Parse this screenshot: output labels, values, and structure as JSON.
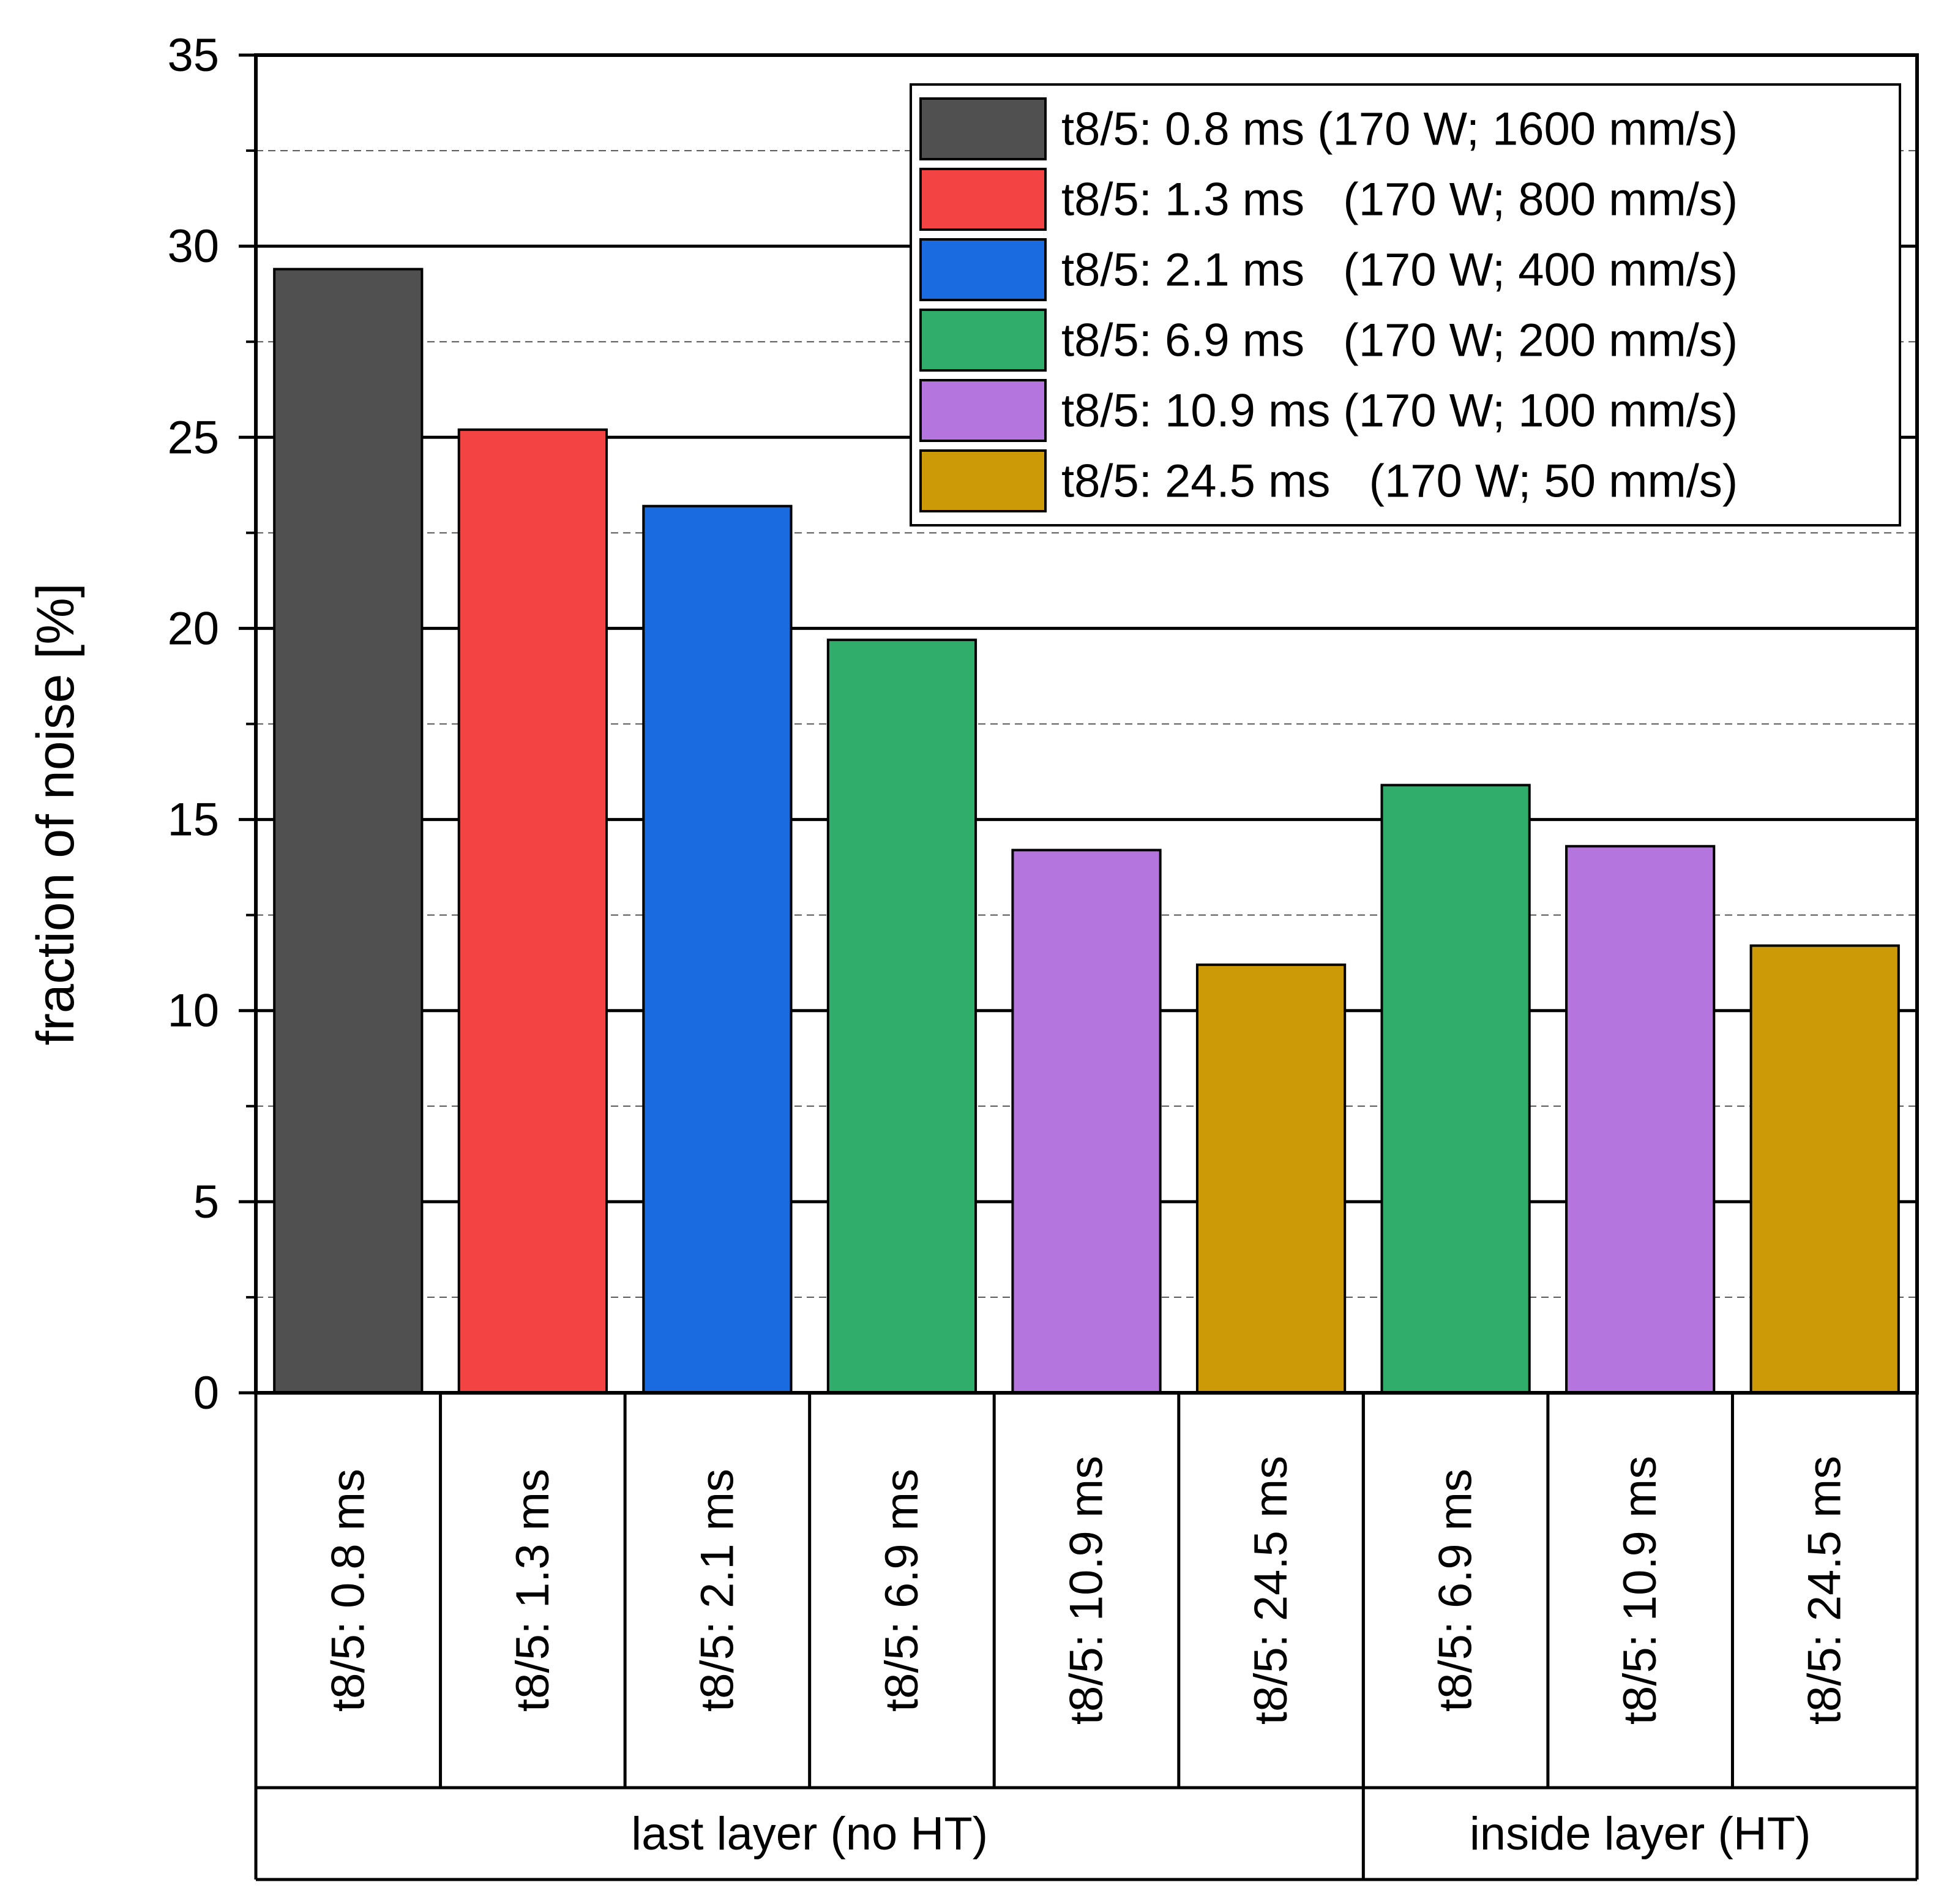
{
  "chart_data": {
    "type": "bar",
    "ylabel": "fraction of noise [%]",
    "ylim": [
      0,
      35
    ],
    "y_ticks": [
      0,
      5,
      10,
      15,
      20,
      25,
      30,
      35
    ],
    "y_tick_labels": [
      "0",
      "5",
      "10",
      "15",
      "20",
      "25",
      "30",
      "35"
    ],
    "y_minor_gridlines": [
      2.5,
      7.5,
      12.5,
      17.5,
      22.5,
      27.5,
      32.5
    ],
    "grid": "major solid, minor dashed",
    "legend_position": "top-right",
    "bars": [
      {
        "category": "t8/5: 0.8 ms",
        "group": "last layer (no HT)",
        "value": 29.4,
        "color": "#505050"
      },
      {
        "category": "t8/5: 1.3 ms",
        "group": "last layer (no HT)",
        "value": 25.2,
        "color": "#f44343"
      },
      {
        "category": "t8/5: 2.1 ms",
        "group": "last layer (no HT)",
        "value": 23.2,
        "color": "#1b6be0"
      },
      {
        "category": "t8/5: 6.9 ms",
        "group": "last layer (no HT)",
        "value": 19.7,
        "color": "#31ad6b"
      },
      {
        "category": "t8/5: 10.9 ms",
        "group": "last layer (no HT)",
        "value": 14.2,
        "color": "#b476de"
      },
      {
        "category": "t8/5: 24.5 ms",
        "group": "last layer (no HT)",
        "value": 11.2,
        "color": "#cc9a06"
      },
      {
        "category": "t8/5: 6.9 ms",
        "group": "inside layer (HT)",
        "value": 15.9,
        "color": "#31ad6b"
      },
      {
        "category": "t8/5: 10.9 ms",
        "group": "inside layer (HT)",
        "value": 14.3,
        "color": "#b476de"
      },
      {
        "category": "t8/5: 24.5 ms",
        "group": "inside layer (HT)",
        "value": 11.7,
        "color": "#cc9a06"
      }
    ],
    "groups": [
      {
        "label": "last layer (no HT)",
        "count": 6
      },
      {
        "label": "inside layer (HT)",
        "count": 3
      }
    ],
    "legend": [
      {
        "label": "t8/5: 0.8 ms (170 W; 1600 mm/s)",
        "color": "#505050"
      },
      {
        "label": "t8/5: 1.3 ms   (170 W; 800 mm/s)",
        "color": "#f44343"
      },
      {
        "label": "t8/5: 2.1 ms   (170 W; 400 mm/s)",
        "color": "#1b6be0"
      },
      {
        "label": "t8/5: 6.9 ms   (170 W; 200 mm/s)",
        "color": "#31ad6b"
      },
      {
        "label": "t8/5: 10.9 ms (170 W; 100 mm/s)",
        "color": "#b476de"
      },
      {
        "label": "t8/5: 24.5 ms   (170 W; 50 mm/s)",
        "color": "#cc9a06"
      }
    ]
  }
}
